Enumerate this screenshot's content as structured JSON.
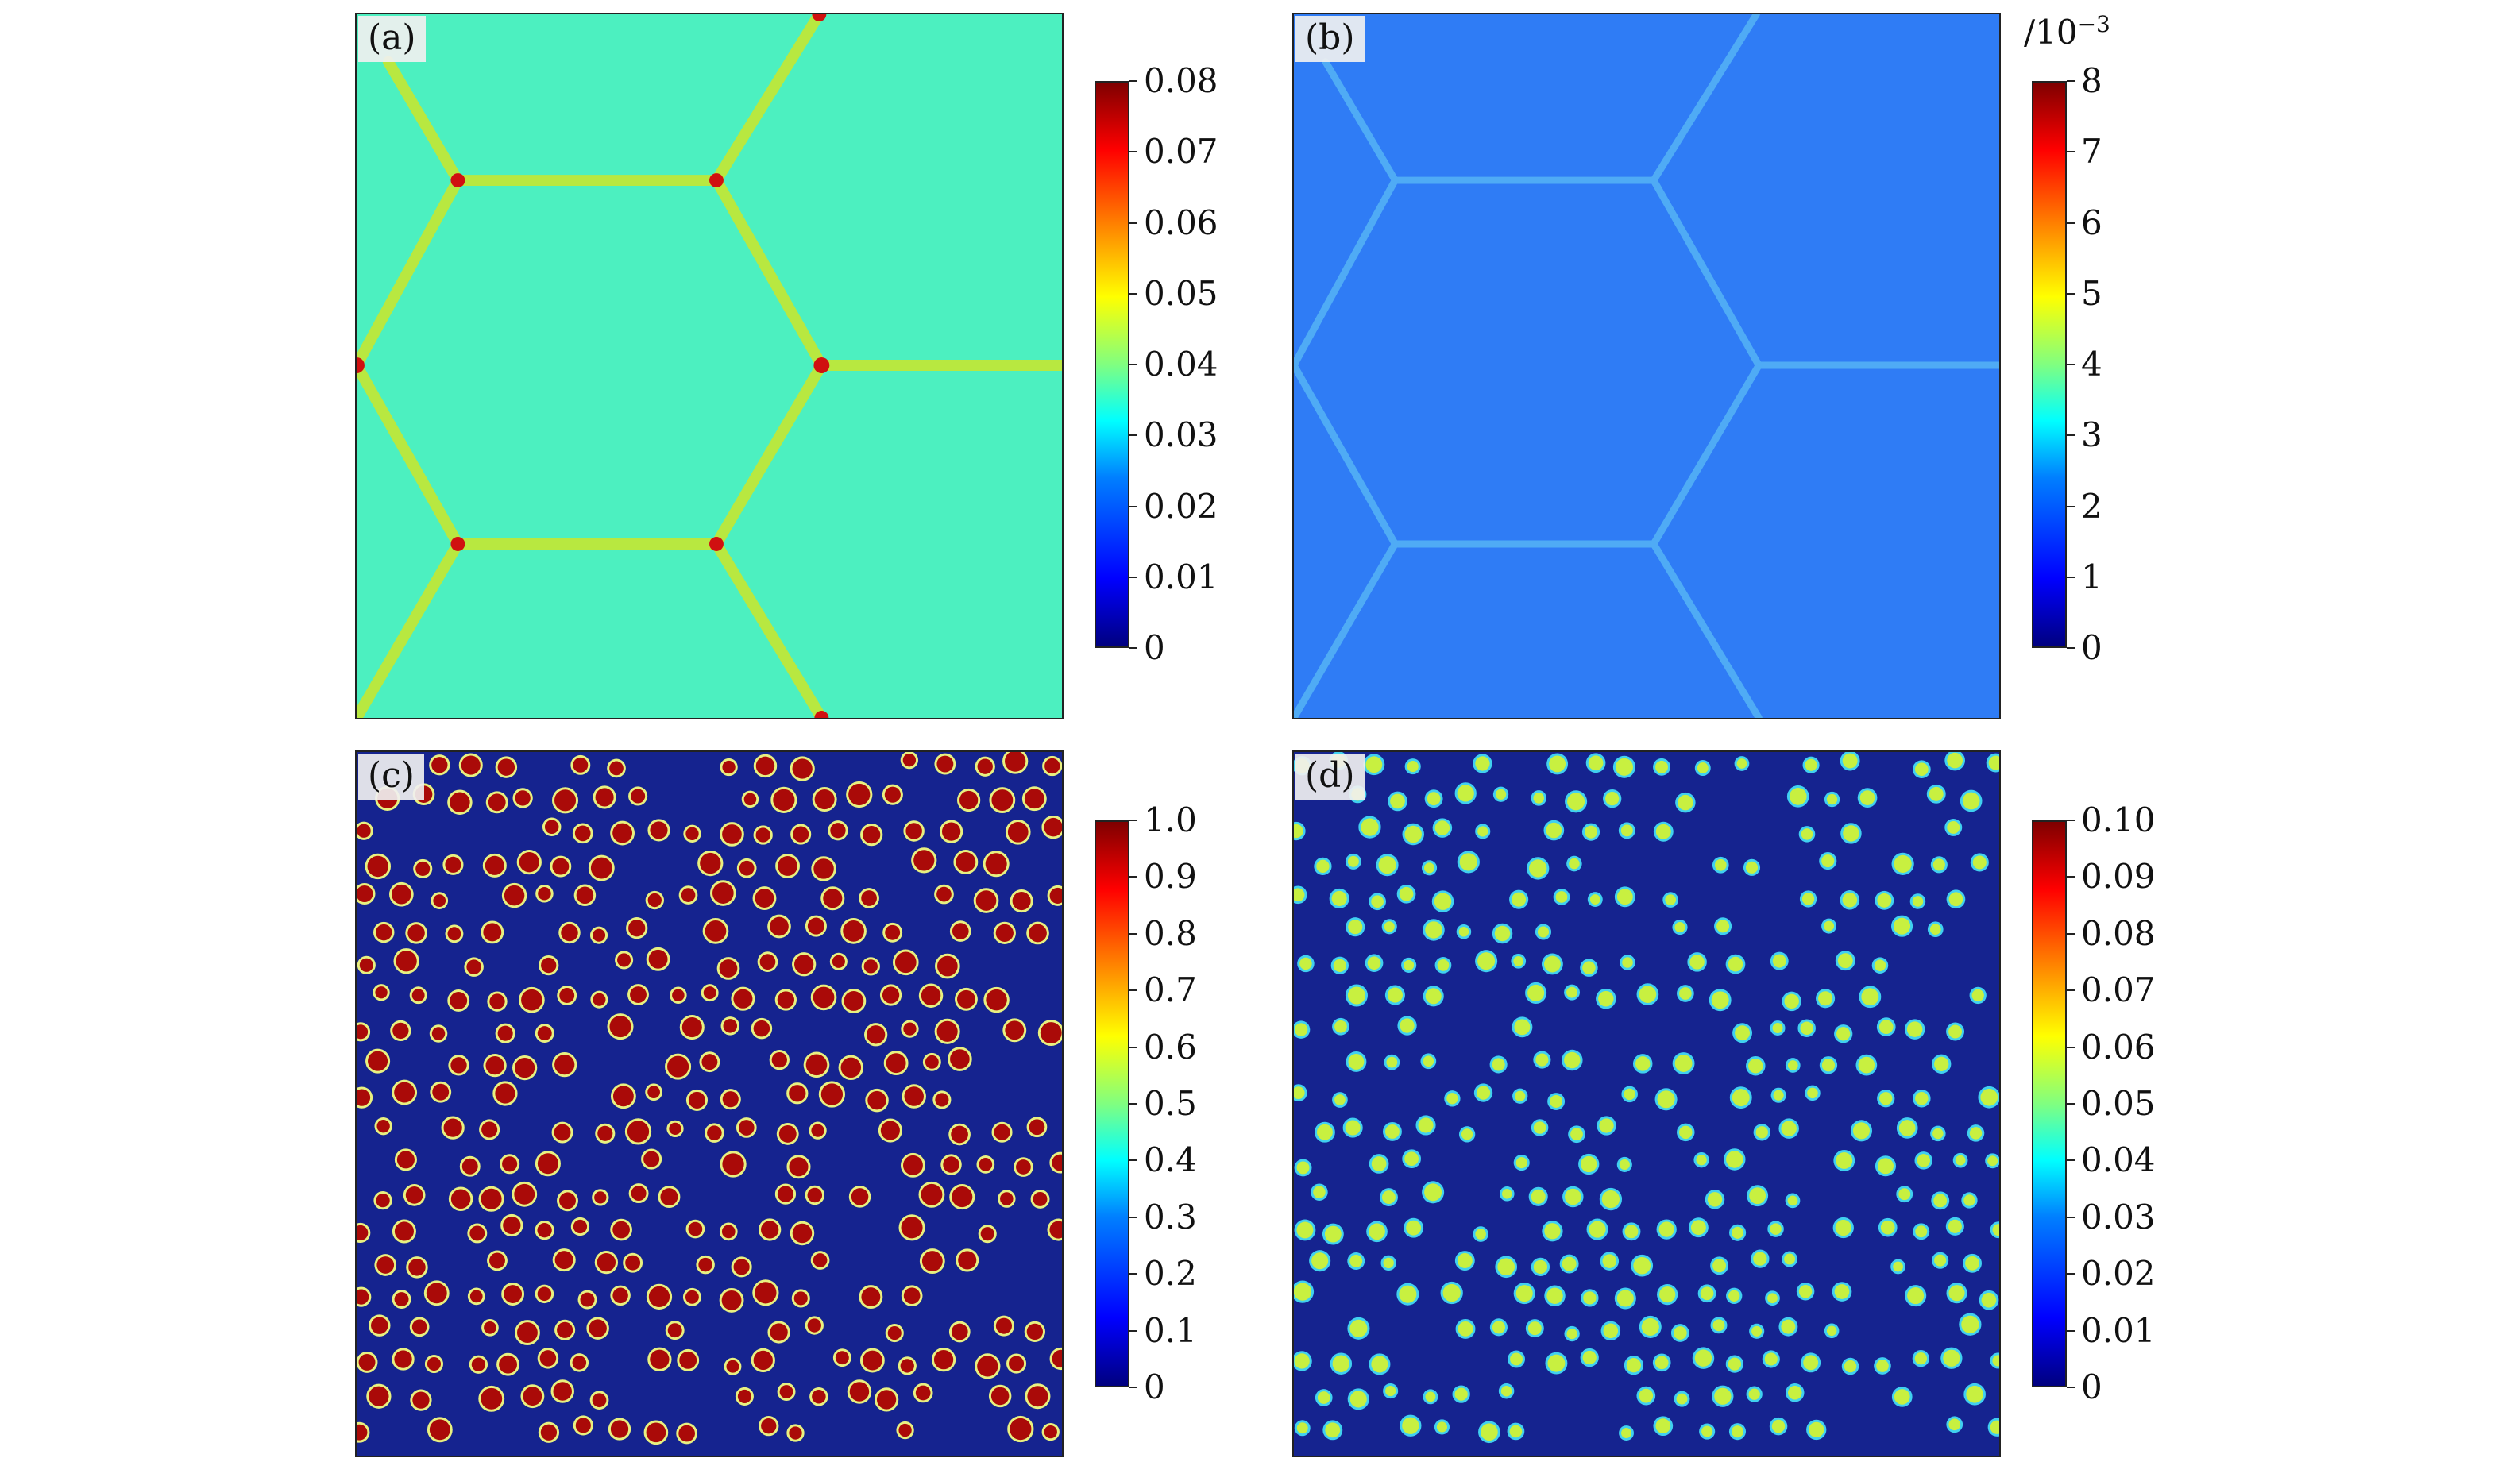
{
  "panels": [
    {
      "label": "(a)",
      "colorbar_ticks": [
        "0",
        "0.01",
        "0.02",
        "0.03",
        "0.04",
        "0.05",
        "0.06",
        "0.07",
        "0.08"
      ],
      "colorbar_exponent": ""
    },
    {
      "label": "(b)",
      "colorbar_ticks": [
        "0",
        "1",
        "2",
        "3",
        "4",
        "5",
        "6",
        "7",
        "8"
      ],
      "colorbar_exponent": "/10",
      "colorbar_exponent_power": "−3"
    },
    {
      "label": "(c)",
      "colorbar_ticks": [
        "0",
        "0.1",
        "0.2",
        "0.3",
        "0.4",
        "0.5",
        "0.6",
        "0.7",
        "0.8",
        "0.9",
        "1.0"
      ],
      "colorbar_exponent": ""
    },
    {
      "label": "(d)",
      "colorbar_ticks": [
        "0",
        "0.01",
        "0.02",
        "0.03",
        "0.04",
        "0.05",
        "0.06",
        "0.07",
        "0.08",
        "0.09",
        "0.10"
      ],
      "colorbar_exponent": ""
    }
  ],
  "colors": {
    "a_background": "#4cf0c0",
    "a_boundary": "#b8e840",
    "a_junction": "#d01010",
    "b_background": "#2f7cf5",
    "b_boundary": "#55b4f5",
    "cd_background": "#15238f",
    "c_particle": "#aa0a08",
    "d_particle": "#c8f040"
  }
}
